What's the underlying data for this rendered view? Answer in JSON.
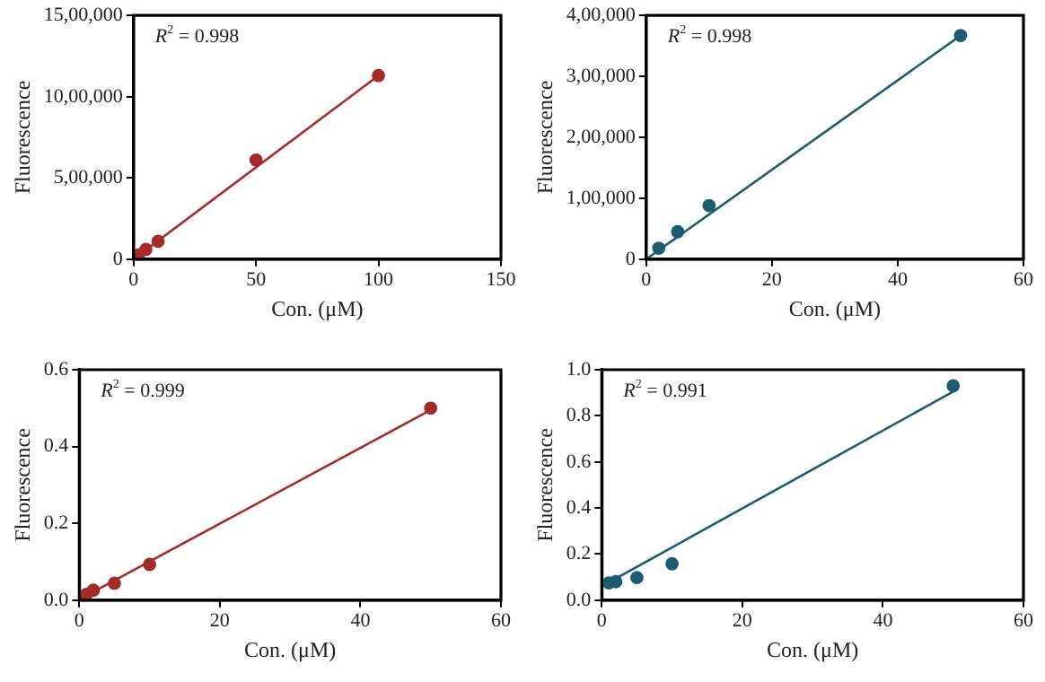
{
  "chart_data": [
    {
      "type": "scatter",
      "xlabel": "Con. (μM)",
      "ylabel": "Fluorescence",
      "annotations": [
        "R$^{2}$ = 0.998"
      ],
      "xlim": [
        0,
        150
      ],
      "xticks": [
        0,
        50,
        100,
        150
      ],
      "ylim": [
        0,
        1500000
      ],
      "yticks": [
        {
          "value": 0,
          "label": "0"
        },
        {
          "value": 500000,
          "label": "5,00,000"
        },
        {
          "value": 1000000,
          "label": "10,00,000"
        },
        {
          "value": 1500000,
          "label": "15,00,000"
        }
      ],
      "series": [
        {
          "type": "scatter",
          "marker": "circle",
          "color": "#a52a2a",
          "x": [
            2,
            5,
            10,
            50,
            100
          ],
          "values": [
            25000,
            60000,
            110000,
            610000,
            1130000
          ]
        },
        {
          "type": "line",
          "marker": "none",
          "color": "#a52a2a",
          "x": [
            0,
            100
          ],
          "values": [
            0,
            1130000
          ]
        }
      ]
    },
    {
      "type": "scatter",
      "xlabel": "Con. (μM)",
      "ylabel": "Fluorescence",
      "annotations": [
        "R$^{2}$ = 0.998"
      ],
      "xlim": [
        0,
        60
      ],
      "xticks": [
        0,
        20,
        40,
        60
      ],
      "ylim": [
        0,
        400000
      ],
      "yticks": [
        {
          "value": 0,
          "label": "0"
        },
        {
          "value": 100000,
          "label": "1,00,000"
        },
        {
          "value": 200000,
          "label": "2,00,000"
        },
        {
          "value": 300000,
          "label": "3,00,000"
        },
        {
          "value": 400000,
          "label": "4,00,000"
        }
      ],
      "series": [
        {
          "type": "scatter",
          "marker": "circle",
          "color": "#1d5d70",
          "x": [
            2,
            5,
            10,
            50
          ],
          "values": [
            18000,
            45000,
            88000,
            367000
          ]
        },
        {
          "type": "line",
          "marker": "none",
          "color": "#1d5d70",
          "x": [
            0,
            50
          ],
          "values": [
            0,
            367000
          ]
        }
      ]
    },
    {
      "type": "scatter",
      "xlabel": "Con. (μM)",
      "ylabel": "Fluorescence",
      "annotations": [
        "R$^{2}$ = 0.999"
      ],
      "xlim": [
        0,
        60
      ],
      "xticks": [
        0,
        20,
        40,
        60
      ],
      "ylim": [
        0,
        0.6
      ],
      "yticks": [
        {
          "value": 0,
          "label": "0.0"
        },
        0.2,
        0.4,
        0.6
      ],
      "series": [
        {
          "type": "scatter",
          "marker": "circle",
          "color": "#a52a2a",
          "x": [
            1,
            2,
            5,
            10,
            50
          ],
          "values": [
            0.015,
            0.026,
            0.044,
            0.093,
            0.5
          ]
        },
        {
          "type": "line",
          "marker": "none",
          "color": "#a52a2a",
          "x": [
            0,
            50
          ],
          "values": [
            0.002,
            0.495
          ]
        }
      ]
    },
    {
      "type": "scatter",
      "xlabel": "Con. (μM)",
      "ylabel": "Fluorescence",
      "annotations": [
        "R$^{2}$ = 0.991"
      ],
      "xlim": [
        0,
        60
      ],
      "xticks": [
        0,
        20,
        40,
        60
      ],
      "ylim": [
        0,
        1.0
      ],
      "yticks": [
        {
          "value": 0,
          "label": "0.0"
        },
        0.2,
        0.4,
        0.6,
        0.8,
        {
          "value": 1,
          "label": "1.0"
        }
      ],
      "series": [
        {
          "type": "scatter",
          "marker": "circle",
          "color": "#1d5d70",
          "x": [
            1,
            2,
            5,
            10,
            50
          ],
          "values": [
            0.075,
            0.08,
            0.098,
            0.158,
            0.93
          ]
        },
        {
          "type": "line",
          "marker": "none",
          "color": "#1d5d70",
          "x": [
            0,
            50
          ],
          "values": [
            0.06,
            0.905
          ]
        }
      ]
    }
  ]
}
